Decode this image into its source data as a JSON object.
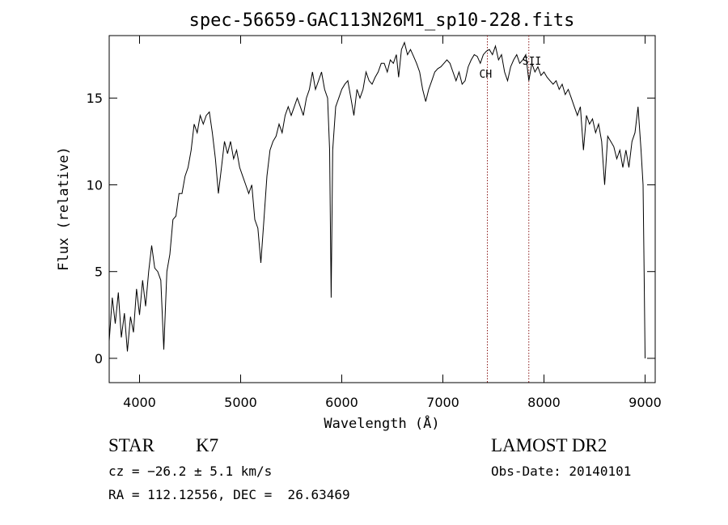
{
  "chart_data": {
    "type": "line",
    "title": "spec-56659-GAC113N26M1_sp10-228.fits",
    "xlabel": "Wavelength (Å)",
    "ylabel": "Flux (relative)",
    "xlim": [
      3700,
      9100
    ],
    "ylim": [
      -1.4,
      18.6
    ],
    "xticks": [
      4000,
      5000,
      6000,
      7000,
      8000,
      9000
    ],
    "yticks": [
      0,
      5,
      10,
      15
    ],
    "grid": false,
    "legend": "none",
    "line_color": "#000000",
    "marker_color": "#8b1a1a",
    "series": [
      {
        "points": [
          [
            3700,
            1.0
          ],
          [
            3730,
            3.5
          ],
          [
            3760,
            2.0
          ],
          [
            3790,
            3.8
          ],
          [
            3820,
            1.2
          ],
          [
            3850,
            2.6
          ],
          [
            3880,
            0.4
          ],
          [
            3910,
            2.4
          ],
          [
            3940,
            1.5
          ],
          [
            3970,
            4.0
          ],
          [
            4000,
            2.5
          ],
          [
            4030,
            4.5
          ],
          [
            4060,
            3.0
          ],
          [
            4090,
            5.0
          ],
          [
            4120,
            6.5
          ],
          [
            4150,
            5.2
          ],
          [
            4180,
            5.0
          ],
          [
            4210,
            4.5
          ],
          [
            4240,
            0.5
          ],
          [
            4270,
            5.0
          ],
          [
            4300,
            6.0
          ],
          [
            4330,
            8.0
          ],
          [
            4360,
            8.2
          ],
          [
            4390,
            9.5
          ],
          [
            4420,
            9.5
          ],
          [
            4450,
            10.5
          ],
          [
            4480,
            11.0
          ],
          [
            4510,
            12.0
          ],
          [
            4540,
            13.5
          ],
          [
            4570,
            13.0
          ],
          [
            4600,
            14.0
          ],
          [
            4630,
            13.5
          ],
          [
            4660,
            14.0
          ],
          [
            4690,
            14.2
          ],
          [
            4720,
            13.0
          ],
          [
            4750,
            11.5
          ],
          [
            4780,
            9.5
          ],
          [
            4810,
            11.0
          ],
          [
            4840,
            12.5
          ],
          [
            4870,
            11.8
          ],
          [
            4900,
            12.5
          ],
          [
            4930,
            11.5
          ],
          [
            4960,
            12.0
          ],
          [
            4990,
            11.0
          ],
          [
            5020,
            10.5
          ],
          [
            5050,
            10.0
          ],
          [
            5080,
            9.5
          ],
          [
            5110,
            10.0
          ],
          [
            5140,
            8.0
          ],
          [
            5170,
            7.5
          ],
          [
            5200,
            5.5
          ],
          [
            5230,
            8.0
          ],
          [
            5260,
            10.5
          ],
          [
            5290,
            12.0
          ],
          [
            5320,
            12.5
          ],
          [
            5350,
            12.8
          ],
          [
            5380,
            13.5
          ],
          [
            5410,
            13.0
          ],
          [
            5440,
            14.0
          ],
          [
            5470,
            14.5
          ],
          [
            5500,
            14.0
          ],
          [
            5530,
            14.5
          ],
          [
            5560,
            15.0
          ],
          [
            5590,
            14.5
          ],
          [
            5620,
            14.0
          ],
          [
            5650,
            15.0
          ],
          [
            5680,
            15.5
          ],
          [
            5710,
            16.5
          ],
          [
            5740,
            15.5
          ],
          [
            5770,
            16.0
          ],
          [
            5800,
            16.5
          ],
          [
            5830,
            15.5
          ],
          [
            5860,
            15.0
          ],
          [
            5880,
            12.0
          ],
          [
            5895,
            3.5
          ],
          [
            5910,
            12.0
          ],
          [
            5940,
            14.5
          ],
          [
            5970,
            15.0
          ],
          [
            6000,
            15.5
          ],
          [
            6030,
            15.8
          ],
          [
            6060,
            16.0
          ],
          [
            6090,
            15.0
          ],
          [
            6120,
            14.0
          ],
          [
            6150,
            15.5
          ],
          [
            6180,
            15.0
          ],
          [
            6210,
            15.5
          ],
          [
            6240,
            16.5
          ],
          [
            6270,
            16.0
          ],
          [
            6300,
            15.8
          ],
          [
            6330,
            16.2
          ],
          [
            6360,
            16.5
          ],
          [
            6390,
            17.0
          ],
          [
            6420,
            17.0
          ],
          [
            6450,
            16.5
          ],
          [
            6480,
            17.2
          ],
          [
            6510,
            17.0
          ],
          [
            6540,
            17.5
          ],
          [
            6562,
            16.2
          ],
          [
            6590,
            17.8
          ],
          [
            6620,
            18.2
          ],
          [
            6650,
            17.5
          ],
          [
            6680,
            17.8
          ],
          [
            6710,
            17.4
          ],
          [
            6740,
            17.0
          ],
          [
            6770,
            16.5
          ],
          [
            6800,
            15.5
          ],
          [
            6830,
            14.8
          ],
          [
            6860,
            15.5
          ],
          [
            6890,
            16.0
          ],
          [
            6920,
            16.5
          ],
          [
            6950,
            16.7
          ],
          [
            6980,
            16.8
          ],
          [
            7010,
            17.0
          ],
          [
            7040,
            17.2
          ],
          [
            7070,
            17.0
          ],
          [
            7100,
            16.5
          ],
          [
            7130,
            16.0
          ],
          [
            7160,
            16.5
          ],
          [
            7190,
            15.8
          ],
          [
            7220,
            16.0
          ],
          [
            7250,
            16.8
          ],
          [
            7280,
            17.2
          ],
          [
            7310,
            17.5
          ],
          [
            7340,
            17.4
          ],
          [
            7370,
            17.0
          ],
          [
            7400,
            17.5
          ],
          [
            7430,
            17.7
          ],
          [
            7460,
            17.8
          ],
          [
            7490,
            17.5
          ],
          [
            7520,
            18.0
          ],
          [
            7550,
            17.2
          ],
          [
            7580,
            17.5
          ],
          [
            7610,
            16.5
          ],
          [
            7640,
            16.0
          ],
          [
            7670,
            16.8
          ],
          [
            7700,
            17.2
          ],
          [
            7730,
            17.5
          ],
          [
            7760,
            17.0
          ],
          [
            7790,
            17.2
          ],
          [
            7820,
            17.5
          ],
          [
            7850,
            16.0
          ],
          [
            7880,
            17.0
          ],
          [
            7910,
            16.5
          ],
          [
            7940,
            16.8
          ],
          [
            7970,
            16.3
          ],
          [
            8000,
            16.5
          ],
          [
            8030,
            16.2
          ],
          [
            8060,
            16.0
          ],
          [
            8090,
            15.8
          ],
          [
            8120,
            16.0
          ],
          [
            8150,
            15.5
          ],
          [
            8180,
            15.8
          ],
          [
            8210,
            15.2
          ],
          [
            8240,
            15.5
          ],
          [
            8270,
            15.0
          ],
          [
            8300,
            14.5
          ],
          [
            8330,
            14.0
          ],
          [
            8360,
            14.5
          ],
          [
            8390,
            12.0
          ],
          [
            8420,
            14.0
          ],
          [
            8450,
            13.5
          ],
          [
            8480,
            13.8
          ],
          [
            8510,
            13.0
          ],
          [
            8540,
            13.5
          ],
          [
            8570,
            12.5
          ],
          [
            8600,
            10.0
          ],
          [
            8630,
            12.8
          ],
          [
            8660,
            12.5
          ],
          [
            8690,
            12.2
          ],
          [
            8720,
            11.5
          ],
          [
            8750,
            12.0
          ],
          [
            8780,
            11.0
          ],
          [
            8810,
            12.0
          ],
          [
            8840,
            11.0
          ],
          [
            8870,
            12.5
          ],
          [
            8900,
            13.0
          ],
          [
            8930,
            14.5
          ],
          [
            8960,
            12.0
          ],
          [
            8980,
            10.0
          ],
          [
            8990,
            5.0
          ],
          [
            9000,
            0.0
          ]
        ]
      }
    ],
    "markers": [
      {
        "x": 7440,
        "label": "CH"
      },
      {
        "x": 7850,
        "label": "SII"
      }
    ]
  },
  "info": {
    "class": "STAR",
    "subclass": "K7",
    "redshift": "cz = −26.2 ± 5.1 km/s",
    "coords": "RA = 112.12556, DEC =  26.63469",
    "survey": "LAMOST DR2",
    "obs_date": "Obs-Date: 20140101"
  }
}
